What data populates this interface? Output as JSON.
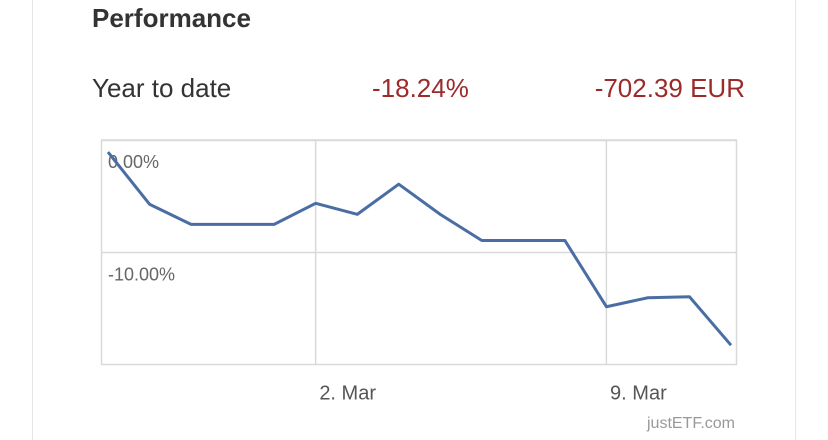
{
  "header": {
    "title": "Performance"
  },
  "summary": {
    "label": "Year to date",
    "return": "-18.24%",
    "amount": "-702.39 EUR"
  },
  "chart_data": {
    "type": "line",
    "categories": [
      null,
      null,
      null,
      null,
      null,
      "2. Mar",
      null,
      null,
      null,
      null,
      null,
      null,
      "9. Mar",
      null,
      null,
      null
    ],
    "values": [
      -1.07,
      -5.71,
      -7.5,
      -7.5,
      -7.5,
      -5.63,
      -6.61,
      -3.93,
      -6.61,
      -8.93,
      -8.93,
      -8.93,
      -14.82,
      -14.02,
      -13.93,
      -18.24
    ],
    "color": "#4a6ea3",
    "ylim": [
      -20,
      0
    ],
    "yticks": [
      {
        "value": 0,
        "label": "0.00%"
      },
      {
        "value": -10,
        "label": "-10.00%"
      }
    ],
    "grid": true
  },
  "footer": {
    "credit": "justETF.com"
  }
}
